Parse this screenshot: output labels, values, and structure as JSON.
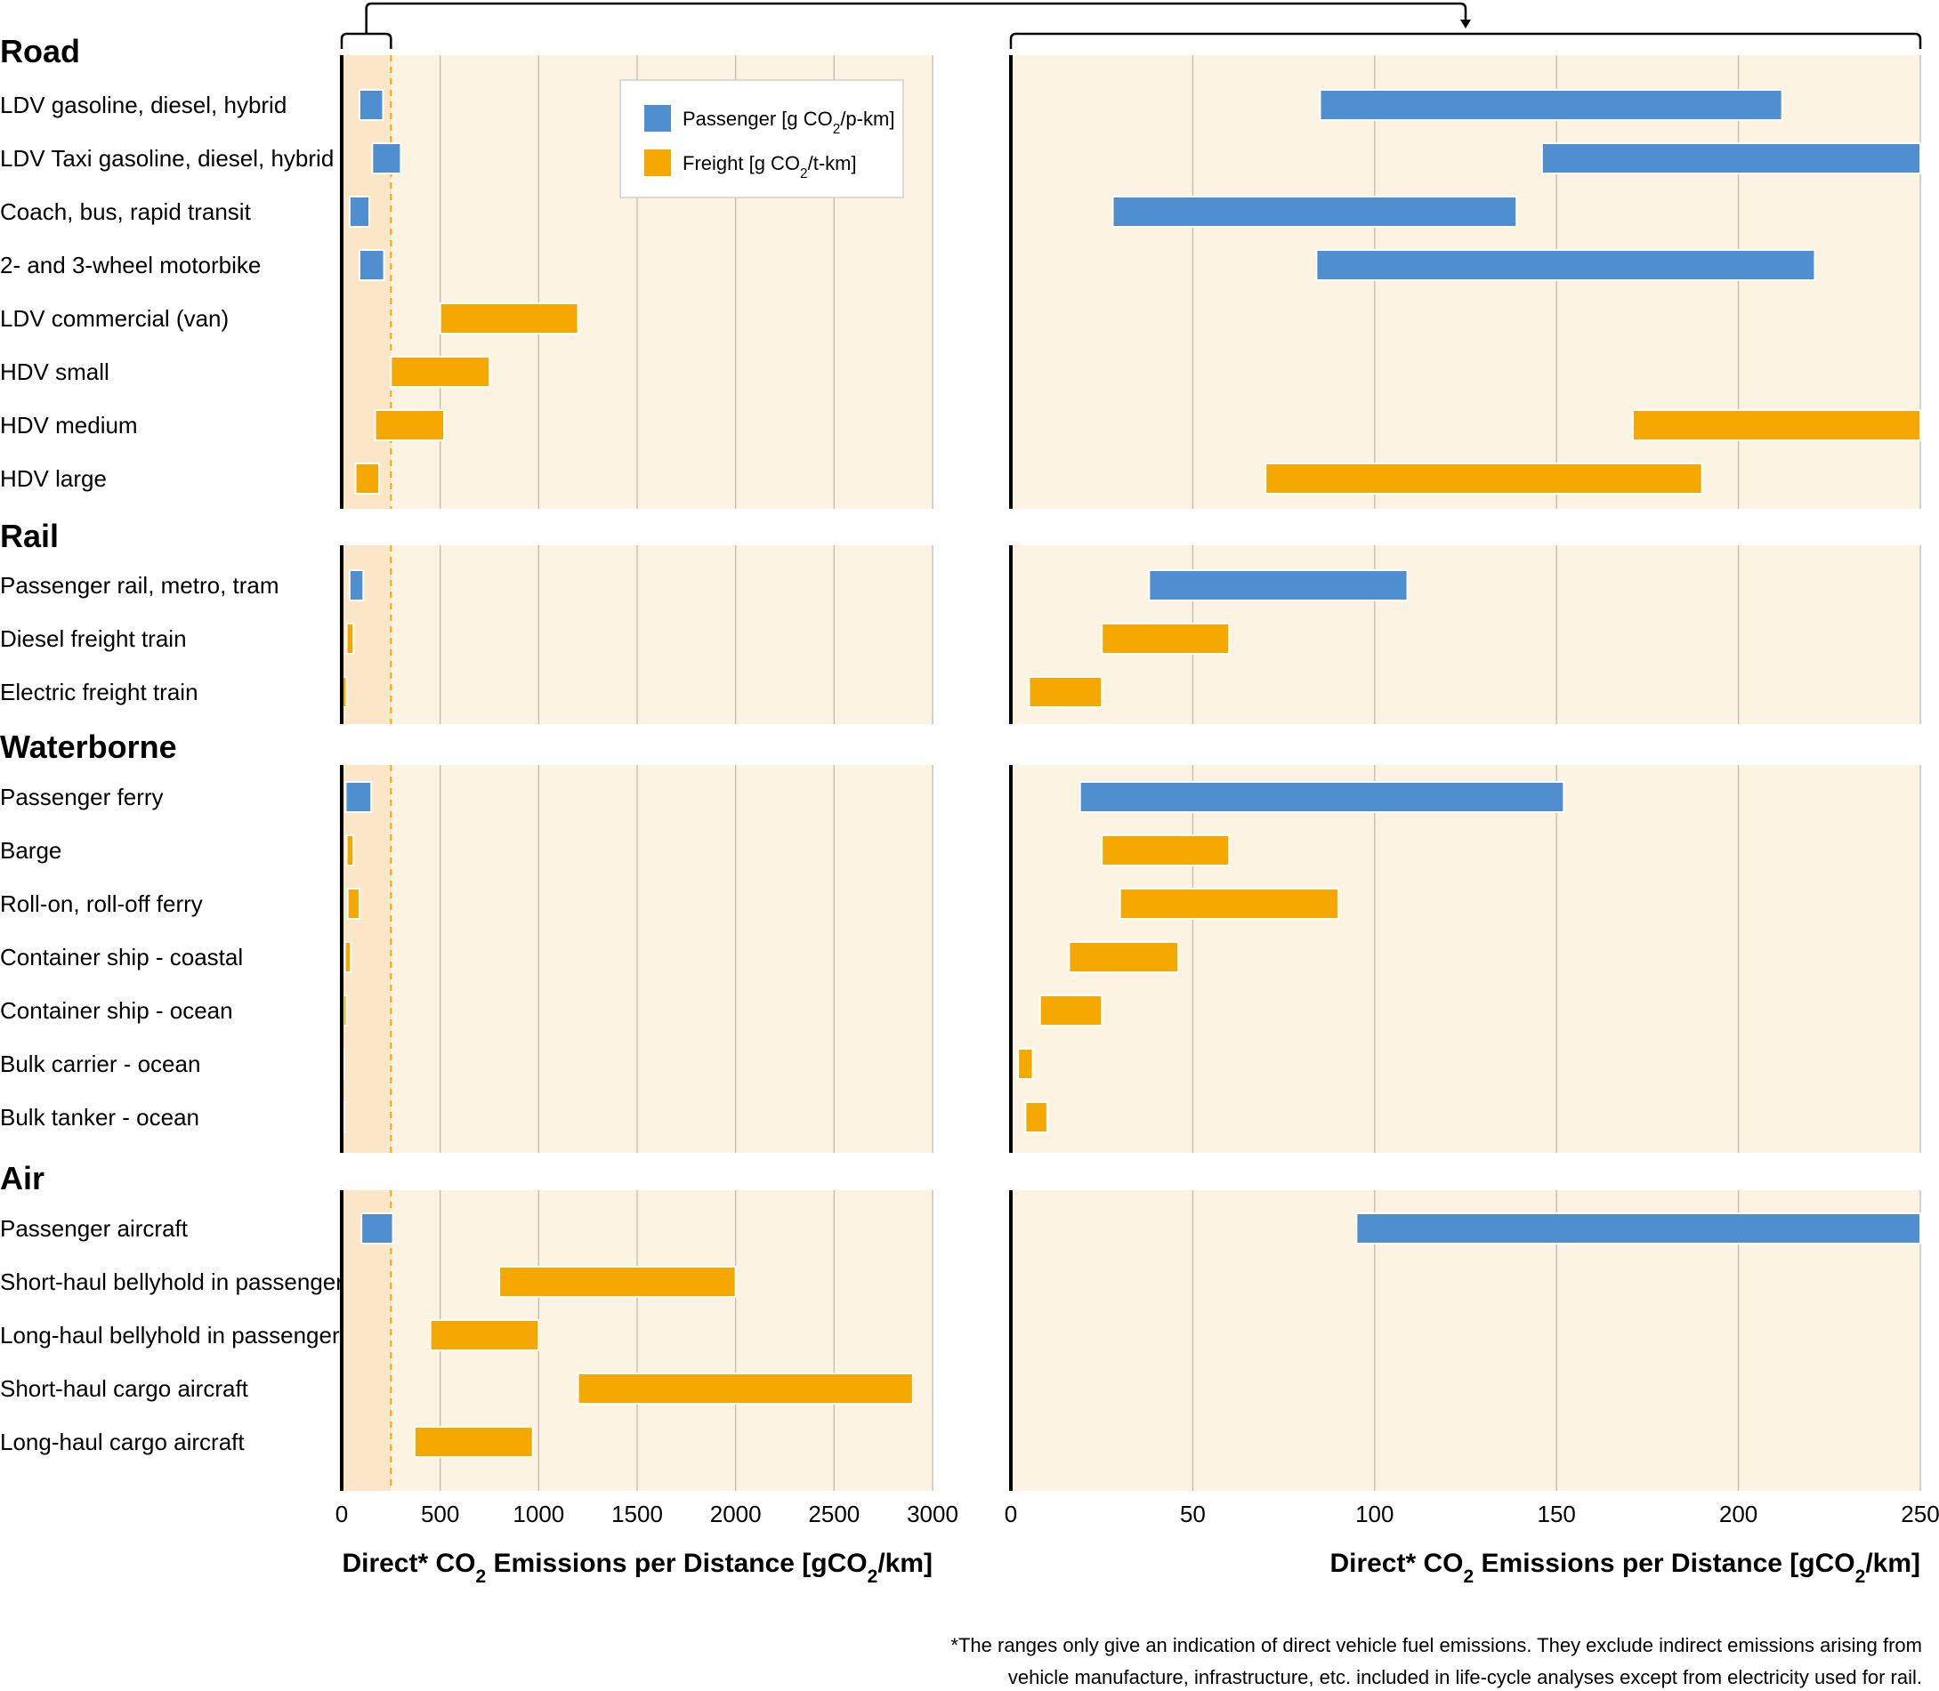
{
  "chart_data": {
    "type": "bar",
    "subtype": "range-bar",
    "colors": {
      "passenger": "#4f8fd0",
      "freight": "#f5a800",
      "panel_bg": "#fdf3e3",
      "highlight_bg": "#fbe7c8",
      "grid": "#c8c1b6",
      "dash": "#f5a800"
    },
    "legend": {
      "placement": "top-center of left panel",
      "items": [
        {
          "key": "passenger",
          "label": "Passenger [g CO2/p-km]"
        },
        {
          "key": "freight",
          "label": "Freight [g CO2/t-km]"
        }
      ]
    },
    "panels": [
      {
        "id": "full",
        "xlim": [
          0,
          3000
        ],
        "ticks": [
          0,
          500,
          1000,
          1500,
          2000,
          2500,
          3000
        ],
        "xlabel": "Direct* CO2 Emissions per Distance [gCO2/km]",
        "grid": true,
        "zoom_region": [
          0,
          250
        ]
      },
      {
        "id": "zoom",
        "xlim": [
          0,
          250
        ],
        "ticks": [
          0,
          50,
          100,
          150,
          200,
          250
        ],
        "xlabel": "Direct* CO2 Emissions per Distance [gCO2/km]",
        "grid": true
      }
    ],
    "groups": [
      {
        "name": "Road",
        "items": [
          {
            "label": "LDV gasoline, diesel, hybrid",
            "kind": "passenger",
            "full": [
              90,
              210
            ],
            "zoom": [
              85,
              212
            ]
          },
          {
            "label": "LDV Taxi gasoline, diesel, hybrid",
            "kind": "passenger",
            "full": [
              155,
              300
            ],
            "zoom": [
              146,
              250
            ]
          },
          {
            "label": "Coach, bus, rapid transit",
            "kind": "passenger",
            "full": [
              40,
              140
            ],
            "zoom": [
              28,
              139
            ]
          },
          {
            "label": "2- and 3-wheel motorbike",
            "kind": "passenger",
            "full": [
              90,
              215
            ],
            "zoom": [
              84,
              221
            ]
          },
          {
            "label": "LDV commercial (van)",
            "kind": "freight",
            "full": [
              500,
              1200
            ]
          },
          {
            "label": "HDV small",
            "kind": "freight",
            "full": [
              250,
              750
            ]
          },
          {
            "label": "HDV medium",
            "kind": "freight",
            "full": [
              170,
              520
            ],
            "zoom": [
              171,
              250
            ]
          },
          {
            "label": "HDV large",
            "kind": "freight",
            "full": [
              70,
              190
            ],
            "zoom": [
              70,
              190
            ]
          }
        ]
      },
      {
        "name": "Rail",
        "items": [
          {
            "label": "Passenger rail, metro, tram",
            "kind": "passenger",
            "full": [
              40,
              110
            ],
            "zoom": [
              38,
              109
            ]
          },
          {
            "label": "Diesel freight train",
            "kind": "freight",
            "full": [
              25,
              60
            ],
            "zoom": [
              25,
              60
            ]
          },
          {
            "label": "Electric freight train",
            "kind": "freight",
            "full": [
              5,
              25
            ],
            "zoom": [
              5,
              25
            ]
          }
        ]
      },
      {
        "name": "Waterborne",
        "items": [
          {
            "label": "Passenger ferry",
            "kind": "passenger",
            "full": [
              20,
              150
            ],
            "zoom": [
              19,
              152
            ]
          },
          {
            "label": "Barge",
            "kind": "freight",
            "full": [
              25,
              60
            ],
            "zoom": [
              25,
              60
            ]
          },
          {
            "label": "Roll-on, roll-off ferry",
            "kind": "freight",
            "full": [
              30,
              90
            ],
            "zoom": [
              30,
              90
            ]
          },
          {
            "label": "Container ship  - coastal",
            "kind": "freight",
            "full": [
              16,
              46
            ],
            "zoom": [
              16,
              46
            ]
          },
          {
            "label": "Container ship - ocean",
            "kind": "freight",
            "full": [
              8,
              25
            ],
            "zoom": [
              8,
              25
            ]
          },
          {
            "label": "Bulk carrier - ocean",
            "kind": "freight",
            "full": [
              2,
              6
            ],
            "zoom": [
              2,
              6
            ]
          },
          {
            "label": "Bulk tanker - ocean",
            "kind": "freight",
            "full": [
              4,
              10
            ],
            "zoom": [
              4,
              10
            ]
          }
        ]
      },
      {
        "name": "Air",
        "items": [
          {
            "label": "Passenger aircraft",
            "kind": "passenger",
            "full": [
              100,
              260
            ],
            "zoom": [
              95,
              250
            ]
          },
          {
            "label": "Short-haul bellyhold in passenger",
            "kind": "freight",
            "full": [
              800,
              2000
            ]
          },
          {
            "label": "Long-haul bellyhold in passenger",
            "kind": "freight",
            "full": [
              450,
              1000
            ]
          },
          {
            "label": "Short-haul cargo aircraft",
            "kind": "freight",
            "full": [
              1200,
              2900
            ]
          },
          {
            "label": "Long-haul cargo aircraft",
            "kind": "freight",
            "full": [
              370,
              970
            ]
          }
        ]
      }
    ]
  },
  "footnote": [
    "*The ranges only give an indication of direct vehicle fuel emissions. They exclude indirect emissions arising from",
    "vehicle manufacture, infrastructure, etc. included in life-cycle analyses except from electricity used for rail."
  ]
}
